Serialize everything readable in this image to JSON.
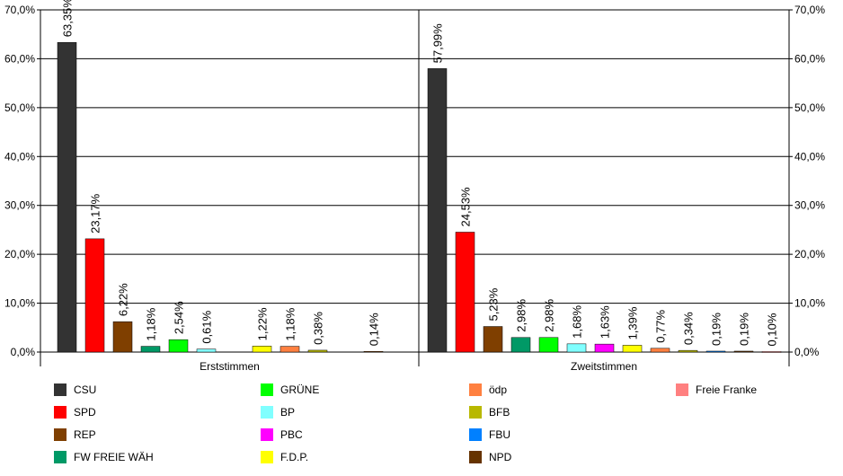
{
  "chart_data": {
    "type": "bar",
    "title": "",
    "xlabel": "",
    "ylabel": "",
    "ylim": [
      0,
      70
    ],
    "y_ticks": [
      "0,0%",
      "10,0%",
      "20,0%",
      "30,0%",
      "40,0%",
      "50,0%",
      "60,0%",
      "70,0%"
    ],
    "grid": "horizontal",
    "legend_position": "bottom",
    "categories": [
      "Erststimmen",
      "Zweitstimmen"
    ],
    "series": [
      {
        "name": "CSU",
        "color": "#333333",
        "values": [
          63.35,
          57.99
        ],
        "labels": [
          "63,35%",
          "57,99%"
        ]
      },
      {
        "name": "SPD",
        "color": "#ff0000",
        "values": [
          23.17,
          24.53
        ],
        "labels": [
          "23,17%",
          "24,53%"
        ]
      },
      {
        "name": "REP",
        "color": "#7f3f00",
        "values": [
          6.22,
          5.23
        ],
        "labels": [
          "6,22%",
          "5,23%"
        ]
      },
      {
        "name": "FW FREIE WÄH",
        "color": "#009966",
        "values": [
          1.18,
          2.98
        ],
        "labels": [
          "1,18%",
          "2,98%"
        ]
      },
      {
        "name": "GRÜNE",
        "color": "#00ff00",
        "values": [
          2.54,
          2.98
        ],
        "labels": [
          "2,54%",
          "2,98%"
        ]
      },
      {
        "name": "BP",
        "color": "#80ffff",
        "values": [
          0.61,
          1.68
        ],
        "labels": [
          "0,61%",
          "1,68%"
        ]
      },
      {
        "name": "PBC",
        "color": "#ff00ff",
        "values": [
          null,
          1.63
        ],
        "labels": [
          "",
          "1,63%"
        ]
      },
      {
        "name": "F.D.P.",
        "color": "#ffff00",
        "values": [
          1.22,
          1.39
        ],
        "labels": [
          "1,22%",
          "1,39%"
        ]
      },
      {
        "name": "ödp",
        "color": "#ff8040",
        "values": [
          1.18,
          0.77
        ],
        "labels": [
          "1,18%",
          "0,77%"
        ]
      },
      {
        "name": "BFB",
        "color": "#b8b800",
        "values": [
          0.38,
          0.34
        ],
        "labels": [
          "0,38%",
          "0,34%"
        ]
      },
      {
        "name": "FBU",
        "color": "#0080ff",
        "values": [
          null,
          0.19
        ],
        "labels": [
          "",
          "0,19%"
        ]
      },
      {
        "name": "NPD",
        "color": "#663300",
        "values": [
          0.14,
          0.19
        ],
        "labels": [
          "0,14%",
          "0,19%"
        ]
      },
      {
        "name": "Freie Franke",
        "color": "#ff8080",
        "values": [
          null,
          0.1
        ],
        "labels": [
          "",
          "0,10%"
        ]
      }
    ]
  }
}
